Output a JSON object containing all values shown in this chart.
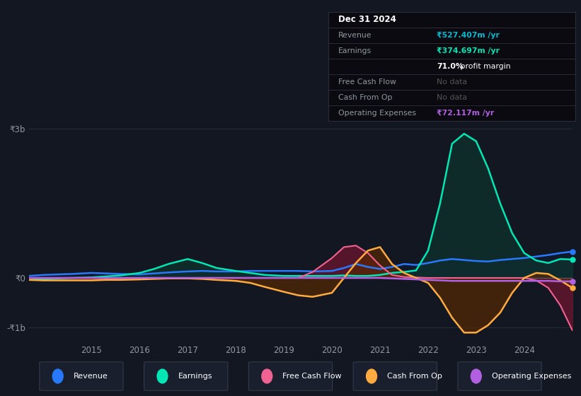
{
  "bg_color": "#131722",
  "plot_bg_color": "#131722",
  "grid_color": "#2a2e39",
  "title_date": "Dec 31 2024",
  "ylabel_top": "₹3b",
  "ylabel_bottom": "-₹1b",
  "ylabel_zero": "₹0",
  "x_years": [
    2013.7,
    2014.0,
    2014.3,
    2014.6,
    2015.0,
    2015.3,
    2015.6,
    2016.0,
    2016.3,
    2016.6,
    2017.0,
    2017.3,
    2017.6,
    2018.0,
    2018.3,
    2018.6,
    2019.0,
    2019.3,
    2019.6,
    2020.0,
    2020.25,
    2020.5,
    2020.75,
    2021.0,
    2021.25,
    2021.5,
    2021.75,
    2022.0,
    2022.25,
    2022.5,
    2022.75,
    2023.0,
    2023.25,
    2023.5,
    2023.75,
    2024.0,
    2024.25,
    2024.5,
    2024.75,
    2025.0
  ],
  "revenue": [
    0.04,
    0.06,
    0.07,
    0.08,
    0.1,
    0.09,
    0.08,
    0.07,
    0.09,
    0.11,
    0.13,
    0.14,
    0.13,
    0.13,
    0.14,
    0.14,
    0.14,
    0.14,
    0.13,
    0.14,
    0.2,
    0.28,
    0.22,
    0.18,
    0.22,
    0.28,
    0.26,
    0.3,
    0.35,
    0.38,
    0.36,
    0.34,
    0.33,
    0.36,
    0.38,
    0.4,
    0.43,
    0.46,
    0.5,
    0.53
  ],
  "earnings": [
    0.0,
    -0.03,
    -0.01,
    0.0,
    0.01,
    0.03,
    0.05,
    0.1,
    0.18,
    0.28,
    0.38,
    0.3,
    0.2,
    0.14,
    0.1,
    0.06,
    0.04,
    0.04,
    0.04,
    0.04,
    0.05,
    0.04,
    0.04,
    0.06,
    0.1,
    0.12,
    0.15,
    0.55,
    1.5,
    2.7,
    2.9,
    2.75,
    2.2,
    1.5,
    0.9,
    0.5,
    0.35,
    0.3,
    0.38,
    0.37
  ],
  "free_cash_flow": [
    0.0,
    0.0,
    0.0,
    0.0,
    0.0,
    -0.01,
    -0.01,
    0.0,
    0.0,
    0.0,
    0.0,
    0.0,
    0.0,
    0.0,
    0.0,
    0.0,
    0.0,
    0.0,
    0.12,
    0.4,
    0.62,
    0.65,
    0.5,
    0.25,
    0.06,
    0.02,
    0.01,
    0.0,
    0.0,
    0.0,
    0.0,
    0.0,
    0.0,
    0.0,
    0.0,
    0.0,
    -0.05,
    -0.2,
    -0.55,
    -1.05
  ],
  "cash_from_op": [
    -0.04,
    -0.05,
    -0.05,
    -0.05,
    -0.05,
    -0.04,
    -0.04,
    -0.03,
    -0.02,
    -0.01,
    -0.01,
    -0.02,
    -0.04,
    -0.06,
    -0.1,
    -0.18,
    -0.28,
    -0.35,
    -0.38,
    -0.3,
    0.0,
    0.3,
    0.55,
    0.62,
    0.28,
    0.1,
    0.0,
    -0.1,
    -0.4,
    -0.8,
    -1.1,
    -1.1,
    -0.95,
    -0.7,
    -0.3,
    0.0,
    0.1,
    0.08,
    -0.05,
    -0.2
  ],
  "operating_expenses": [
    0.0,
    0.0,
    0.0,
    0.0,
    0.0,
    0.0,
    0.0,
    0.0,
    0.0,
    0.0,
    0.0,
    0.0,
    0.0,
    0.0,
    0.0,
    0.0,
    0.0,
    0.0,
    0.0,
    0.0,
    0.0,
    0.0,
    0.0,
    0.0,
    -0.01,
    -0.02,
    -0.03,
    -0.04,
    -0.05,
    -0.06,
    -0.06,
    -0.06,
    -0.06,
    -0.06,
    -0.06,
    -0.06,
    -0.06,
    -0.06,
    -0.07,
    -0.07
  ],
  "revenue_color": "#2979ff",
  "earnings_color": "#00e5b4",
  "free_cash_flow_color": "#f06292",
  "cash_from_op_color": "#ffab40",
  "operating_expenses_color": "#b060e0",
  "earnings_fill": "#0d3d30",
  "revenue_fill": "#0d1e40",
  "free_cash_flow_fill": "#7a1530",
  "cash_from_op_fill": "#5a2800",
  "x_ticks": [
    2015,
    2016,
    2017,
    2018,
    2019,
    2020,
    2021,
    2022,
    2023,
    2024
  ],
  "ytick_positions": [
    3.0,
    0.0,
    -1.0
  ],
  "ytick_labels": [
    "₹3b",
    "₹0",
    "-₹1b"
  ],
  "info_rows": [
    {
      "label": "Dec 31 2024",
      "value": null,
      "value_color": null,
      "is_header": true
    },
    {
      "label": "Revenue",
      "value": "₹527.407m /yr",
      "value_color": "#00bcd4",
      "is_header": false
    },
    {
      "label": "Earnings",
      "value": "₹374.697m /yr",
      "value_color": "#00e5b4",
      "is_header": false
    },
    {
      "label": "",
      "value": "71.0% profit margin",
      "value_color": "#ffffff",
      "is_header": false,
      "bold_prefix": "71.0%"
    },
    {
      "label": "Free Cash Flow",
      "value": "No data",
      "value_color": "#555555",
      "is_header": false
    },
    {
      "label": "Cash From Op",
      "value": "No data",
      "value_color": "#555555",
      "is_header": false
    },
    {
      "label": "Operating Expenses",
      "value": "₹72.117m /yr",
      "value_color": "#b060e0",
      "is_header": false
    }
  ],
  "legend_items": [
    {
      "label": "Revenue",
      "color": "#2979ff"
    },
    {
      "label": "Earnings",
      "color": "#00e5b4"
    },
    {
      "label": "Free Cash Flow",
      "color": "#f06292"
    },
    {
      "label": "Cash From Op",
      "color": "#ffab40"
    },
    {
      "label": "Operating Expenses",
      "color": "#b060e0"
    }
  ]
}
